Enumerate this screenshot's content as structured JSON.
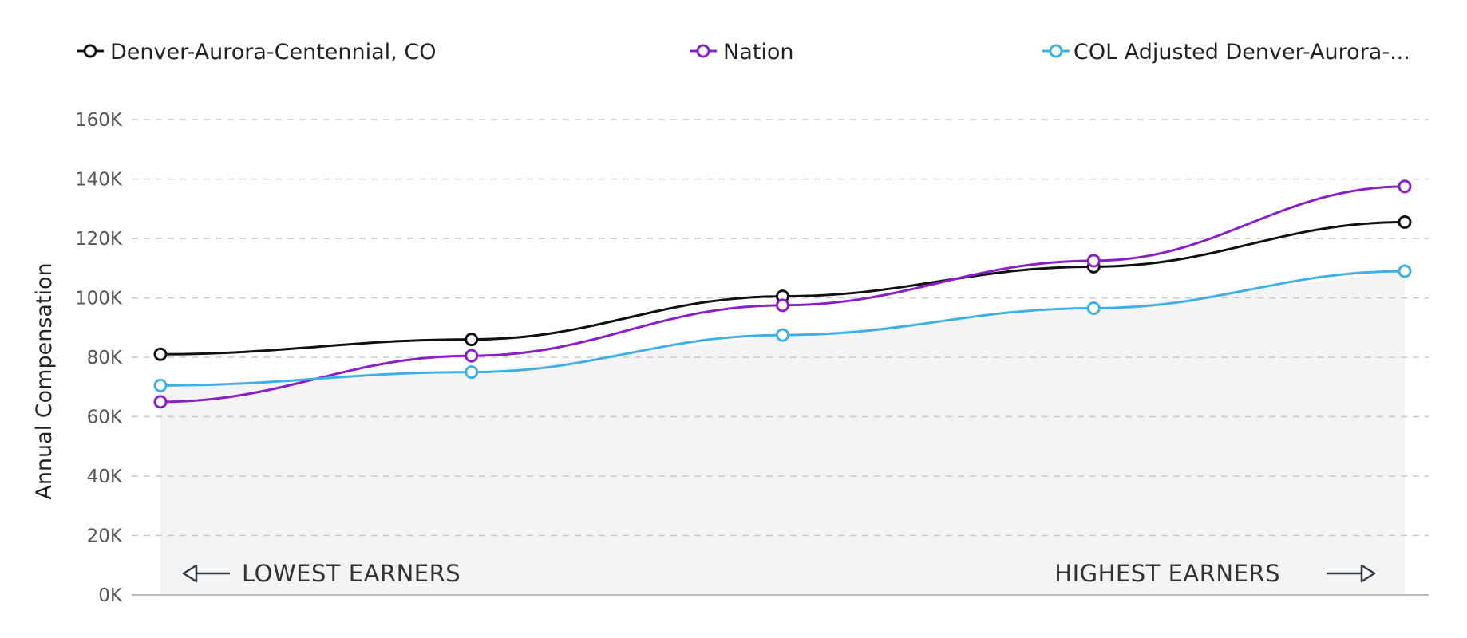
{
  "chart_data": {
    "type": "line",
    "x": [
      1,
      2,
      3,
      4,
      5
    ],
    "ylabel": "Annual Compensation",
    "ylim": [
      0,
      160000
    ],
    "yticks": [
      {
        "value": 0,
        "label": "0K"
      },
      {
        "value": 20000,
        "label": "20K"
      },
      {
        "value": 40000,
        "label": "40K"
      },
      {
        "value": 60000,
        "label": "60K"
      },
      {
        "value": 80000,
        "label": "80K"
      },
      {
        "value": 100000,
        "label": "100K"
      },
      {
        "value": 120000,
        "label": "120K"
      },
      {
        "value": 140000,
        "label": "140K"
      },
      {
        "value": 160000,
        "label": "160K"
      }
    ],
    "grid": true,
    "legend_position": "top",
    "series": [
      {
        "name": "Denver-Aurora-Centennial, CO",
        "color": "#111111",
        "values": [
          81000,
          86000,
          100500,
          110500,
          125500
        ]
      },
      {
        "name": "Nation",
        "color": "#8a1fc9",
        "values": [
          65000,
          80500,
          97500,
          112500,
          137500
        ]
      },
      {
        "name": "COL Adjusted Denver-Aurora-...",
        "color": "#3fb0e3",
        "values": [
          70500,
          75000,
          87500,
          96500,
          109000
        ]
      }
    ],
    "area_series": 2,
    "area_color": "#f4f4f4",
    "annotations": {
      "left": "LOWEST EARNERS",
      "right": "HIGHEST EARNERS"
    }
  }
}
